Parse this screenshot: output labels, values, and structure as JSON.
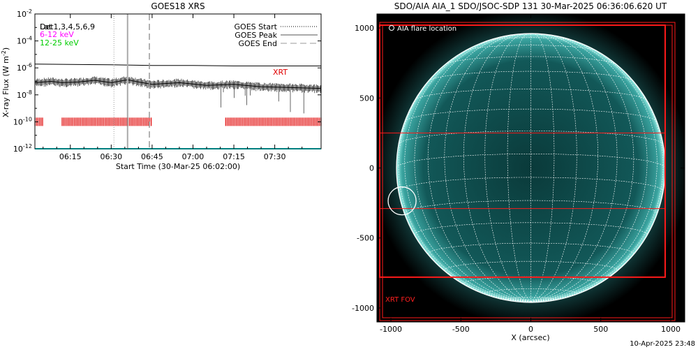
{
  "chart_data": [
    {
      "type": "line",
      "title": "GOES18 XRS",
      "xlabel": "Start Time (30-Mar-25 06:02:00)",
      "ylabel": "X-ray Flux (W m",
      "ylabel_sup": "-2",
      "ylabel_close": ")",
      "y_scale": "log",
      "ylim": [
        1e-12,
        0.01
      ],
      "y_ticks": [
        {
          "value": -2,
          "base": "10",
          "exp": "-2"
        },
        {
          "value": -4,
          "base": "10",
          "exp": "-4"
        },
        {
          "value": -6,
          "base": "10",
          "exp": "-6"
        },
        {
          "value": -8,
          "base": "10",
          "exp": "-8"
        },
        {
          "value": -10,
          "base": "10",
          "exp": "-10"
        },
        {
          "value": -12,
          "base": "10",
          "exp": "-12"
        }
      ],
      "xlim": [
        "06:02",
        "07:47"
      ],
      "x_ticks": [
        "06:15",
        "06:30",
        "06:45",
        "07:00",
        "07:15",
        "07:30"
      ],
      "legend_left": [
        {
          "label": "Det1,3,4,5,6,9",
          "color": "#000000"
        },
        {
          "label": "6-12 keV",
          "color": "#ff00ff"
        },
        {
          "label": "12-25 keV",
          "color": "#00cc00"
        }
      ],
      "legend_left_overlay": "Lat",
      "legend_right": [
        {
          "label": "GOES Start",
          "style": "dotted"
        },
        {
          "label": "GOES Peak",
          "style": "solid"
        },
        {
          "label": "GOES End",
          "style": "dashed"
        }
      ],
      "goes_times": {
        "start": "06:31",
        "peak": "06:36",
        "end": "06:44"
      },
      "xrt_label": "XRT",
      "series": [
        {
          "color": "#000000",
          "x": [
            "06:02",
            "06:15",
            "06:30",
            "06:45",
            "07:00",
            "07:15",
            "07:30",
            "07:47"
          ],
          "y": [
            1.9e-06,
            1.8e-06,
            1.7e-06,
            1.5e-06,
            1.5e-06,
            1.4e-06,
            1.4e-06,
            1.4e-06
          ]
        },
        {
          "color": "#000000",
          "x": [
            "06:02",
            "06:08",
            "06:12",
            "06:18",
            "06:24",
            "06:30",
            "06:36",
            "06:40",
            "06:45",
            "06:55",
            "07:05",
            "07:15",
            "07:25",
            "07:35",
            "07:47"
          ],
          "y": [
            8e-08,
            1e-07,
            8e-08,
            9e-08,
            1.2e-07,
            8e-08,
            1.3e-07,
            9e-08,
            6e-08,
            8e-08,
            5e-08,
            6e-08,
            4e-08,
            3.5e-08,
            3e-08
          ]
        },
        {
          "color": "#00ffff",
          "x": [
            "06:02",
            "07:47"
          ],
          "y": [
            1e-12,
            1e-12
          ]
        }
      ],
      "xrt_segments": [
        [
          "06:02",
          "06:05"
        ],
        [
          "06:12",
          "06:45"
        ],
        [
          "07:12",
          "07:47"
        ]
      ],
      "xrt_level": 1e-10
    },
    {
      "type": "image",
      "title": "SDO/AIA AIA_1 SDO/JSOC-SDP 131 30-Mar-2025 06:36:06.620 UT",
      "xlabel": "X (arcsec)",
      "xlim": [
        -1100,
        1100
      ],
      "ylim": [
        -1100,
        1100
      ],
      "x_ticks": [
        "-1000",
        "-500",
        "0",
        "500",
        "1000"
      ],
      "y_ticks": [
        "1000",
        "500",
        "0",
        "-500",
        "-1000"
      ],
      "flare_legend": "AIA flare location",
      "fov_label": "XRT FOV",
      "flare_location": [
        -920,
        -235
      ],
      "disk_radius": 960,
      "disk_color": "#0c4848",
      "fov_boxes": [
        {
          "x": [
            -1060,
            1010
          ],
          "y": [
            -1070,
            1020
          ]
        },
        {
          "x": [
            -1080,
            1030
          ],
          "y": [
            -1090,
            1040
          ]
        },
        {
          "x": [
            -1080,
            960
          ],
          "y": [
            -780,
            1020
          ]
        },
        {
          "x": [
            -1080,
            960
          ],
          "y": [
            -290,
            250
          ]
        }
      ]
    }
  ],
  "footer": {
    "timestamp": "10-Apr-2025 23:48"
  }
}
